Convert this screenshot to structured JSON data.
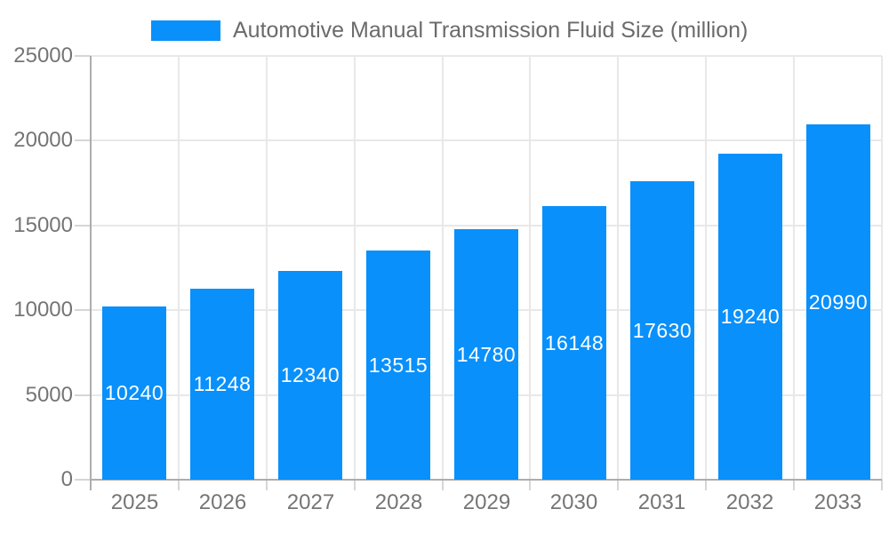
{
  "legend": {
    "label": "Automotive Manual Transmission Fluid Size (million)"
  },
  "chart_data": {
    "type": "bar",
    "title": "Automotive Manual Transmission Fluid Size (million)",
    "categories": [
      "2025",
      "2026",
      "2027",
      "2028",
      "2029",
      "2030",
      "2031",
      "2032",
      "2033"
    ],
    "series": [
      {
        "name": "Automotive Manual Transmission Fluid Size (million)",
        "values": [
          10240,
          11248,
          12340,
          13515,
          14780,
          16148,
          17630,
          19240,
          20990
        ]
      }
    ],
    "values": [
      10240,
      11248,
      12340,
      13515,
      14780,
      16148,
      17630,
      19240,
      20990
    ],
    "data_labels": [
      "10240",
      "11248",
      "12340",
      "13515",
      "14780",
      "16148",
      "17630",
      "19240",
      "20990"
    ],
    "xlabel": "",
    "ylabel": "",
    "ylim": [
      0,
      25000
    ],
    "ytick_interval": 5000,
    "ytick_labels": [
      "0",
      "5000",
      "10000",
      "15000",
      "20000",
      "25000"
    ],
    "grid": "horizontal-and-vertical",
    "legend_position": "top-center",
    "colors": {
      "bar": "#0990fb",
      "bar_label": "#ffffff",
      "axis_line": "#adadad",
      "gridline": "#e8e8e8",
      "tick": "#d6d6d6",
      "axis_text": "#757575",
      "legend_text": "#6b6b6b",
      "background": "#ffffff"
    }
  }
}
